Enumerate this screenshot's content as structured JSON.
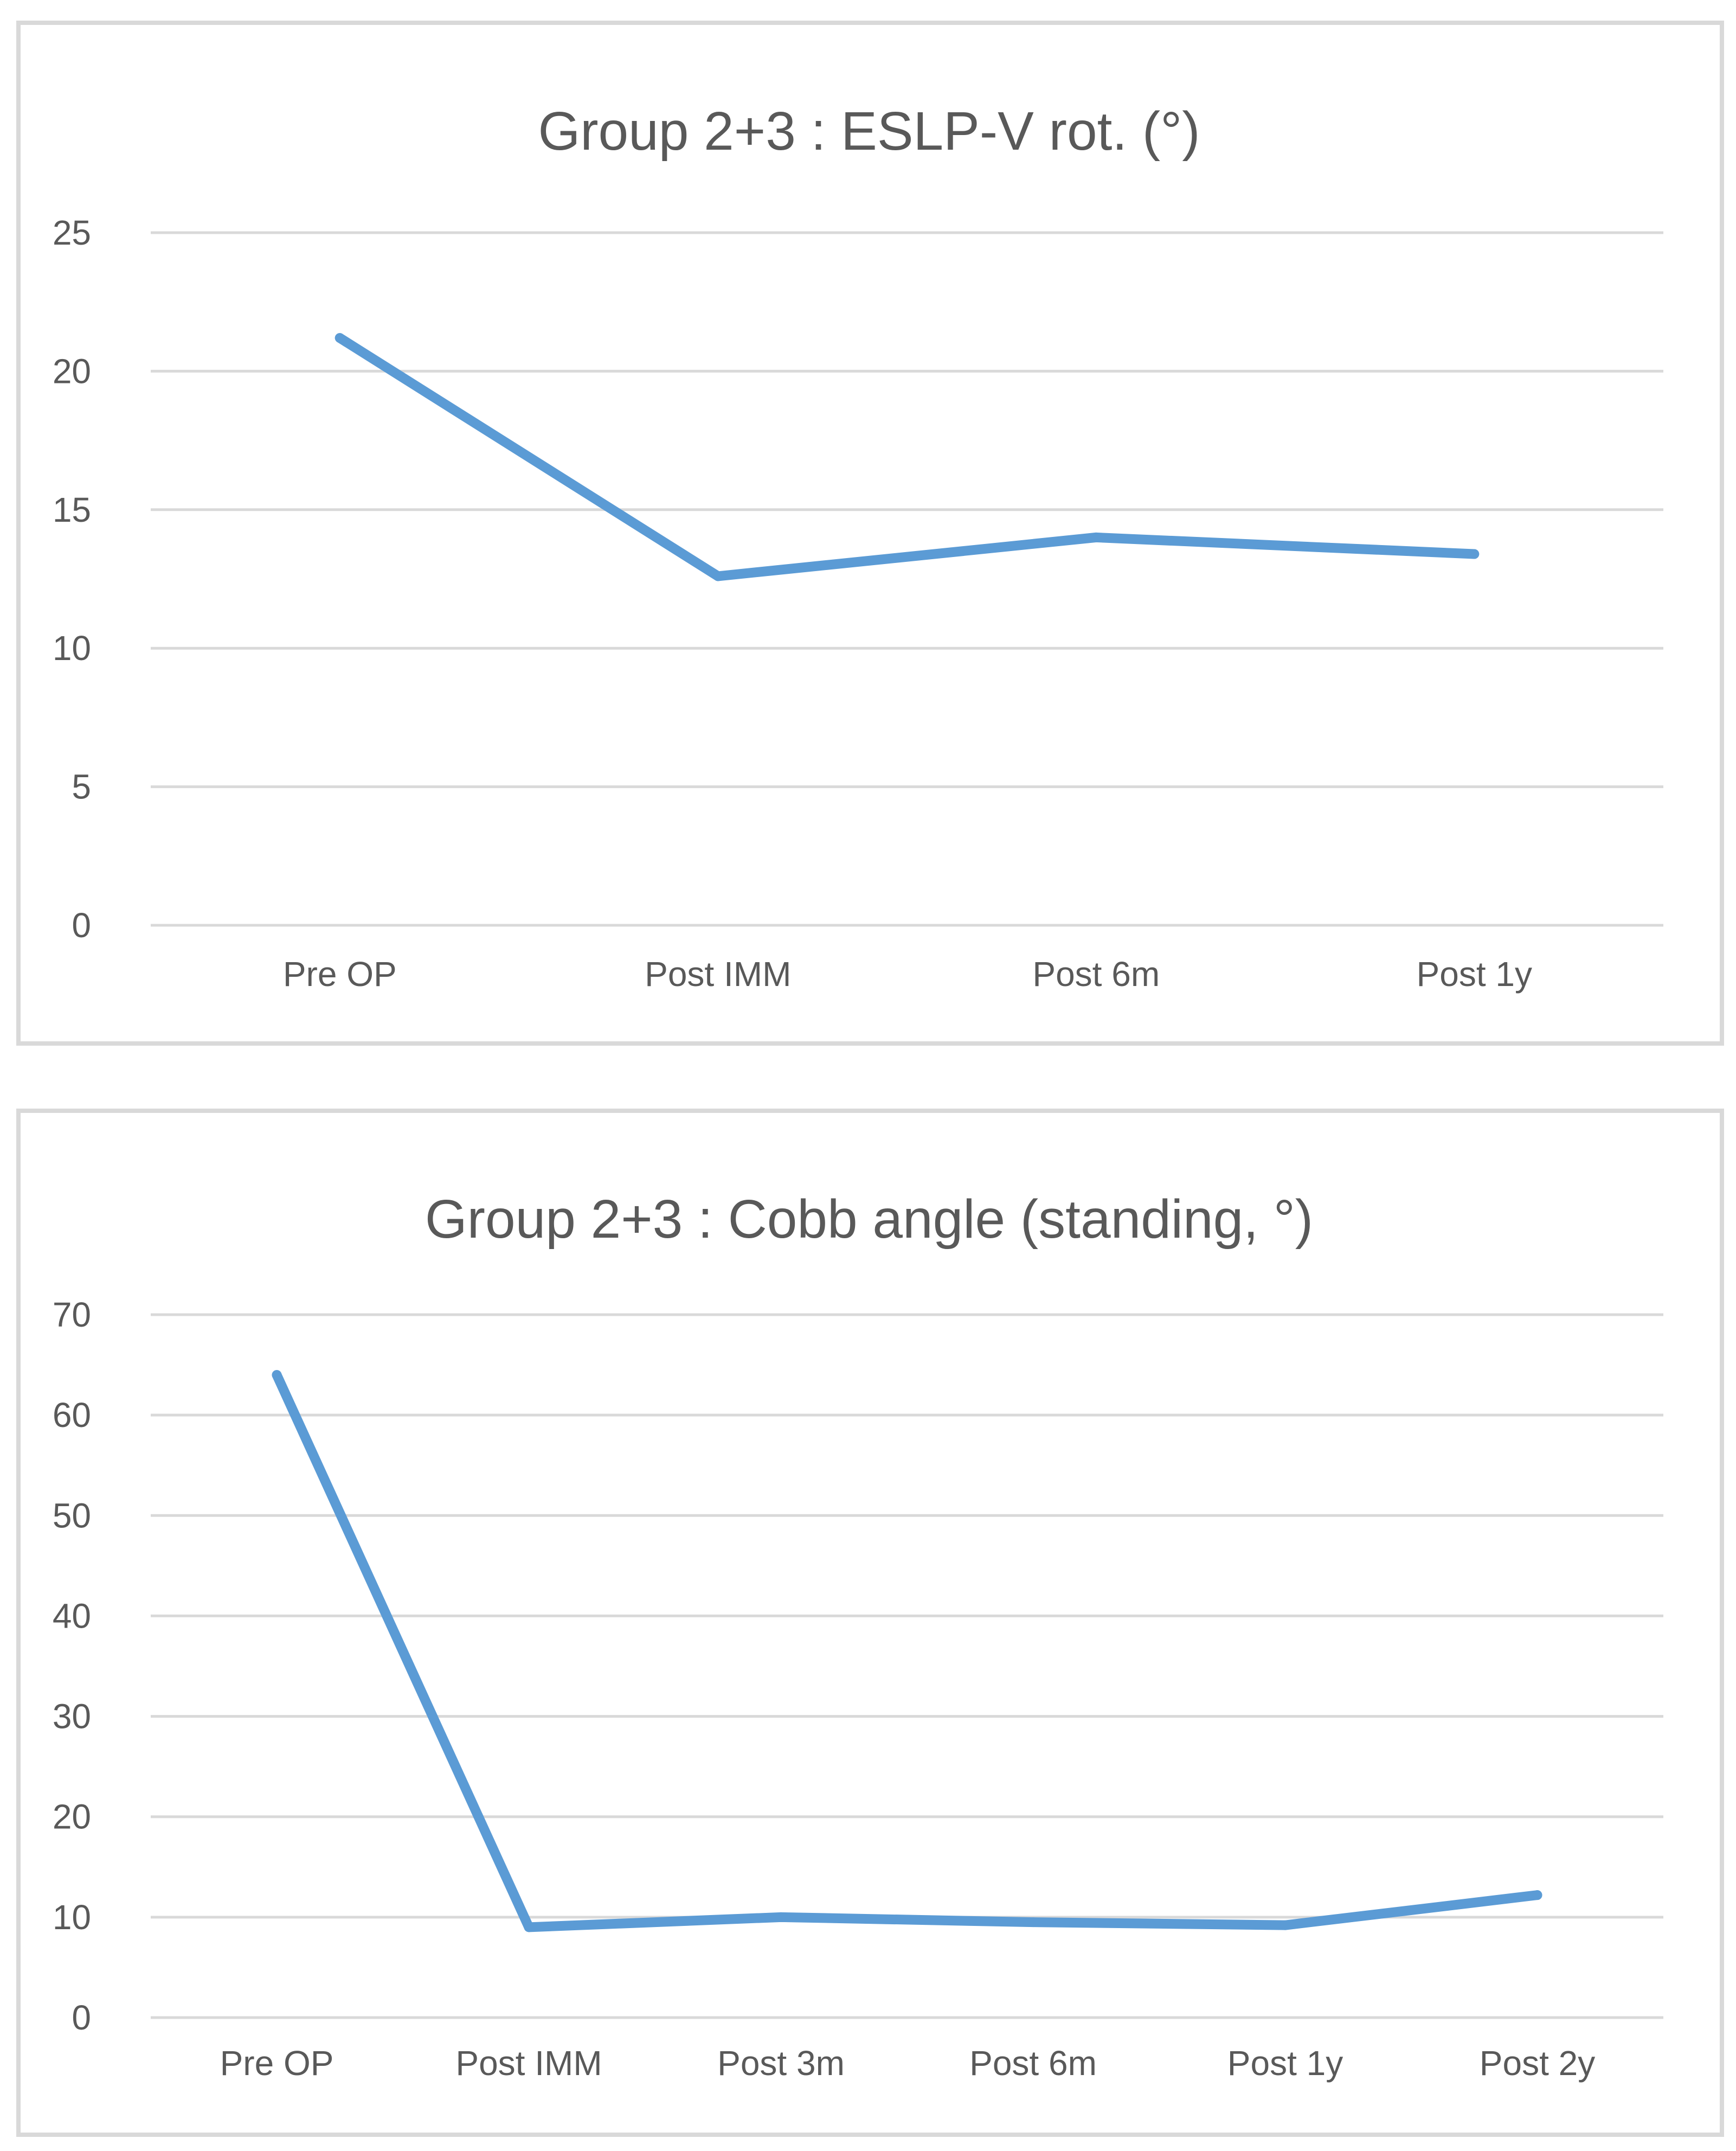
{
  "chart_data": [
    {
      "type": "line",
      "title": "Group 2+3 : ESLP-V rot. (°)",
      "xlabel": "",
      "ylabel": "",
      "categories": [
        "Pre OP",
        "Post IMM",
        "Post 6m",
        "Post 1y"
      ],
      "series": [
        {
          "values": [
            21.2,
            12.6,
            14.0,
            13.4
          ]
        }
      ],
      "yticks": [
        "0",
        "5",
        "10",
        "15",
        "20",
        "25"
      ],
      "ylim": [
        0,
        25
      ],
      "grid": true,
      "legend": "none",
      "line_color": "#5b9bd5"
    },
    {
      "type": "line",
      "title": "Group 2+3 : Cobb angle (standing, °)",
      "xlabel": "",
      "ylabel": "",
      "categories": [
        "Pre OP",
        "Post IMM",
        "Post 3m",
        "Post 6m",
        "Post 1y",
        "Post 2y"
      ],
      "series": [
        {
          "values": [
            64,
            9,
            10,
            9.5,
            9.2,
            12.2
          ]
        }
      ],
      "yticks": [
        "0",
        "10",
        "20",
        "30",
        "40",
        "50",
        "60",
        "70"
      ],
      "ylim": [
        0,
        70
      ],
      "grid": true,
      "legend": "none",
      "line_color": "#5b9bd5"
    }
  ]
}
